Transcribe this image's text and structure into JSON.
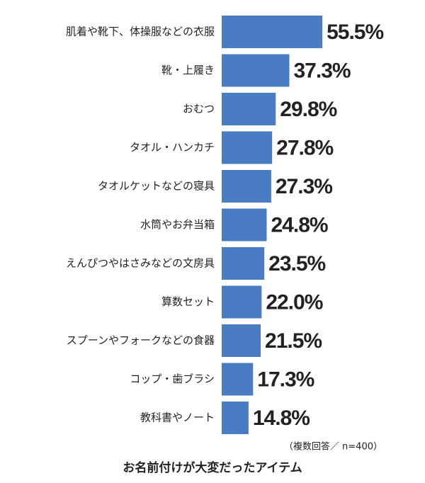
{
  "chart_data": {
    "type": "bar",
    "title": "お名前付けが大変だったアイテム",
    "note": "（複数回答／ n=400）",
    "categories": [
      "肌着や靴下、体操服などの衣服",
      "靴・上履き",
      "おむつ",
      "タオル・ハンカチ",
      "タオルケットなどの寝具",
      "水筒やお弁当箱",
      "えんぴつやはさみなどの文房具",
      "算数セット",
      "スプーンやフォークなどの食器",
      "コップ・歯ブラシ",
      "教科書やノート"
    ],
    "values": [
      55.5,
      37.3,
      29.8,
      27.8,
      27.3,
      24.8,
      23.5,
      22.0,
      21.5,
      17.3,
      14.8
    ],
    "value_labels": [
      "55.5%",
      "37.3%",
      "29.8%",
      "27.8%",
      "27.3%",
      "24.8%",
      "23.5%",
      "22.0%",
      "21.5%",
      "17.3%",
      "14.8%"
    ],
    "color": "#4a7cc4"
  }
}
